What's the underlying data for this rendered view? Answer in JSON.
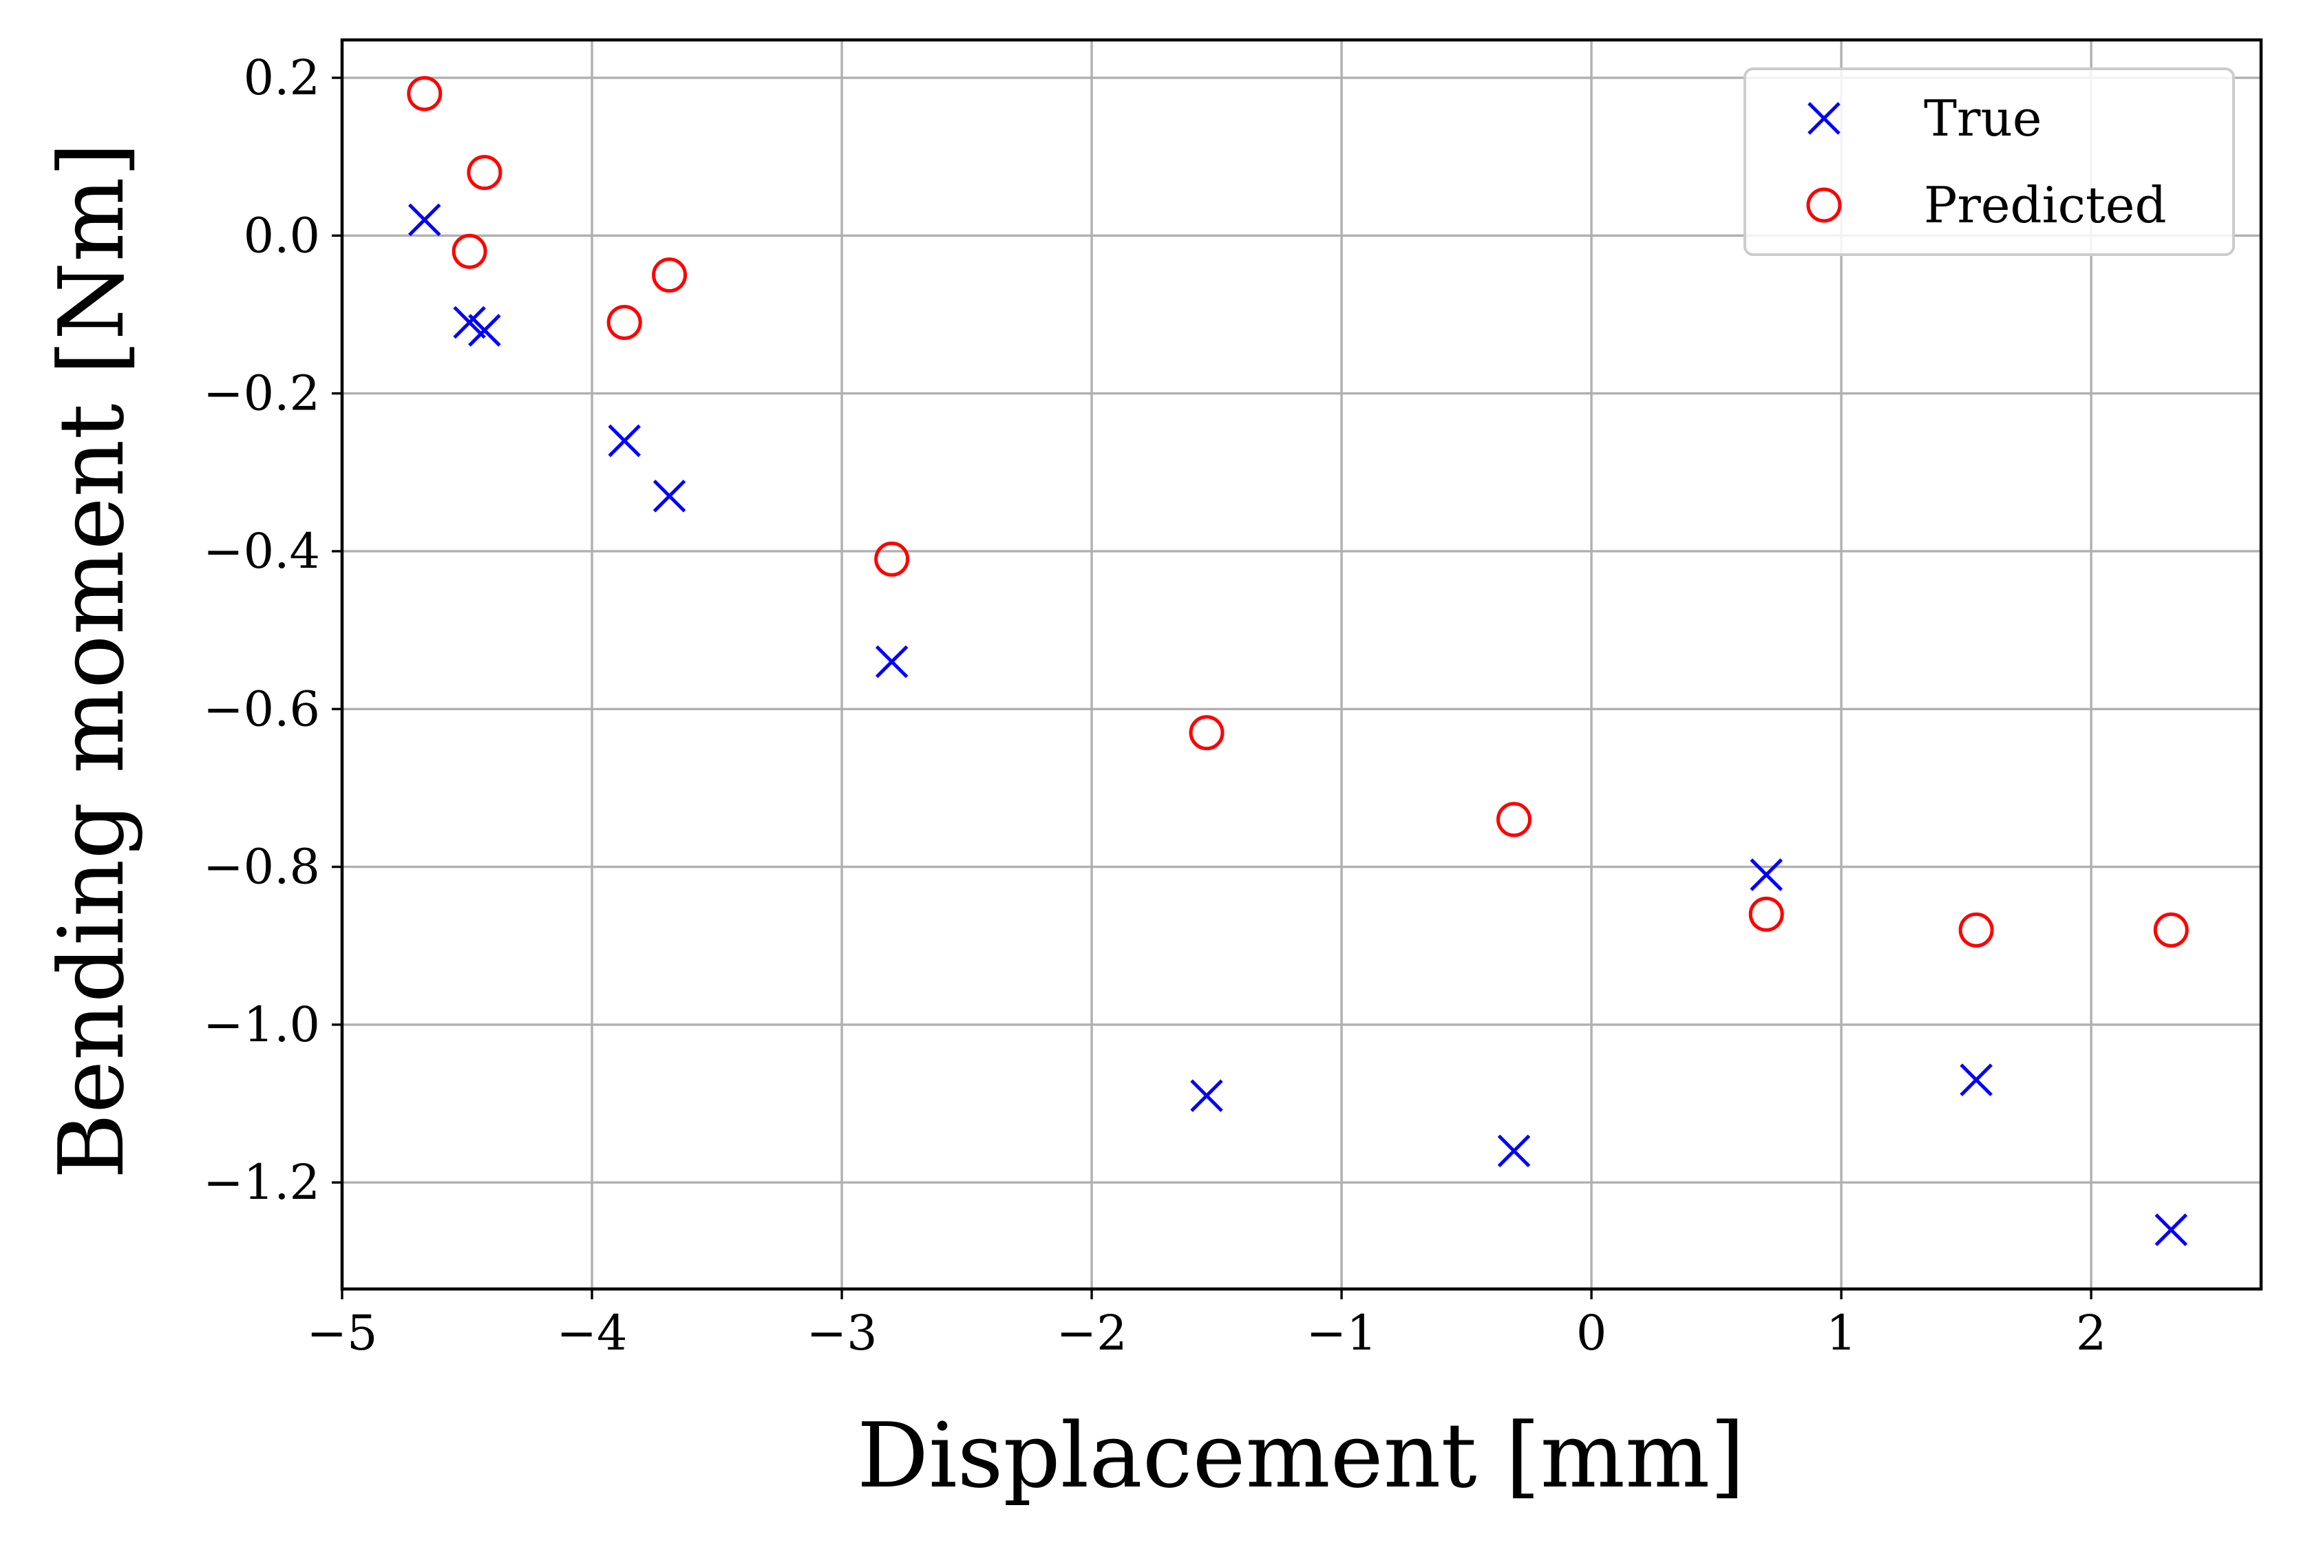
{
  "chart_data": {
    "type": "scatter",
    "title": "",
    "xlabel": "Displacement [mm]",
    "ylabel": "Bending moment [Nm]",
    "xlim": [
      -5.0,
      2.68
    ],
    "ylim": [
      -1.335,
      0.248
    ],
    "xticks": [
      -5,
      -4,
      -3,
      -2,
      -1,
      0,
      1,
      2
    ],
    "xtick_labels": [
      "−5",
      "−4",
      "−3",
      "−2",
      "−1",
      "0",
      "1",
      "2"
    ],
    "yticks": [
      0.2,
      0.0,
      -0.2,
      -0.4,
      -0.6,
      -0.8,
      -1.0,
      -1.2
    ],
    "ytick_labels": [
      "0.2",
      "0.0",
      "−0.2",
      "−0.4",
      "−0.6",
      "−0.8",
      "−1.0",
      "−1.2"
    ],
    "grid": true,
    "legend_position": "top-right",
    "series": [
      {
        "name": "True",
        "marker": "x",
        "color": "#0000ff",
        "x": [
          -4.67,
          -4.49,
          -4.43,
          -3.87,
          -3.69,
          -2.8,
          -1.54,
          -0.31,
          0.7,
          1.54,
          2.32
        ],
        "y": [
          0.02,
          -0.11,
          -0.12,
          -0.26,
          -0.33,
          -0.54,
          -1.09,
          -1.16,
          -0.81,
          -1.07,
          -1.26
        ]
      },
      {
        "name": "Predicted",
        "marker": "circle-open",
        "color": "#ff0000",
        "x": [
          -4.67,
          -4.49,
          -4.43,
          -3.87,
          -3.69,
          -2.8,
          -1.54,
          -0.31,
          0.7,
          1.54,
          2.32
        ],
        "y": [
          0.18,
          -0.02,
          0.08,
          -0.11,
          -0.05,
          -0.41,
          -0.63,
          -0.74,
          -0.86,
          -0.88,
          -0.88
        ]
      }
    ]
  }
}
